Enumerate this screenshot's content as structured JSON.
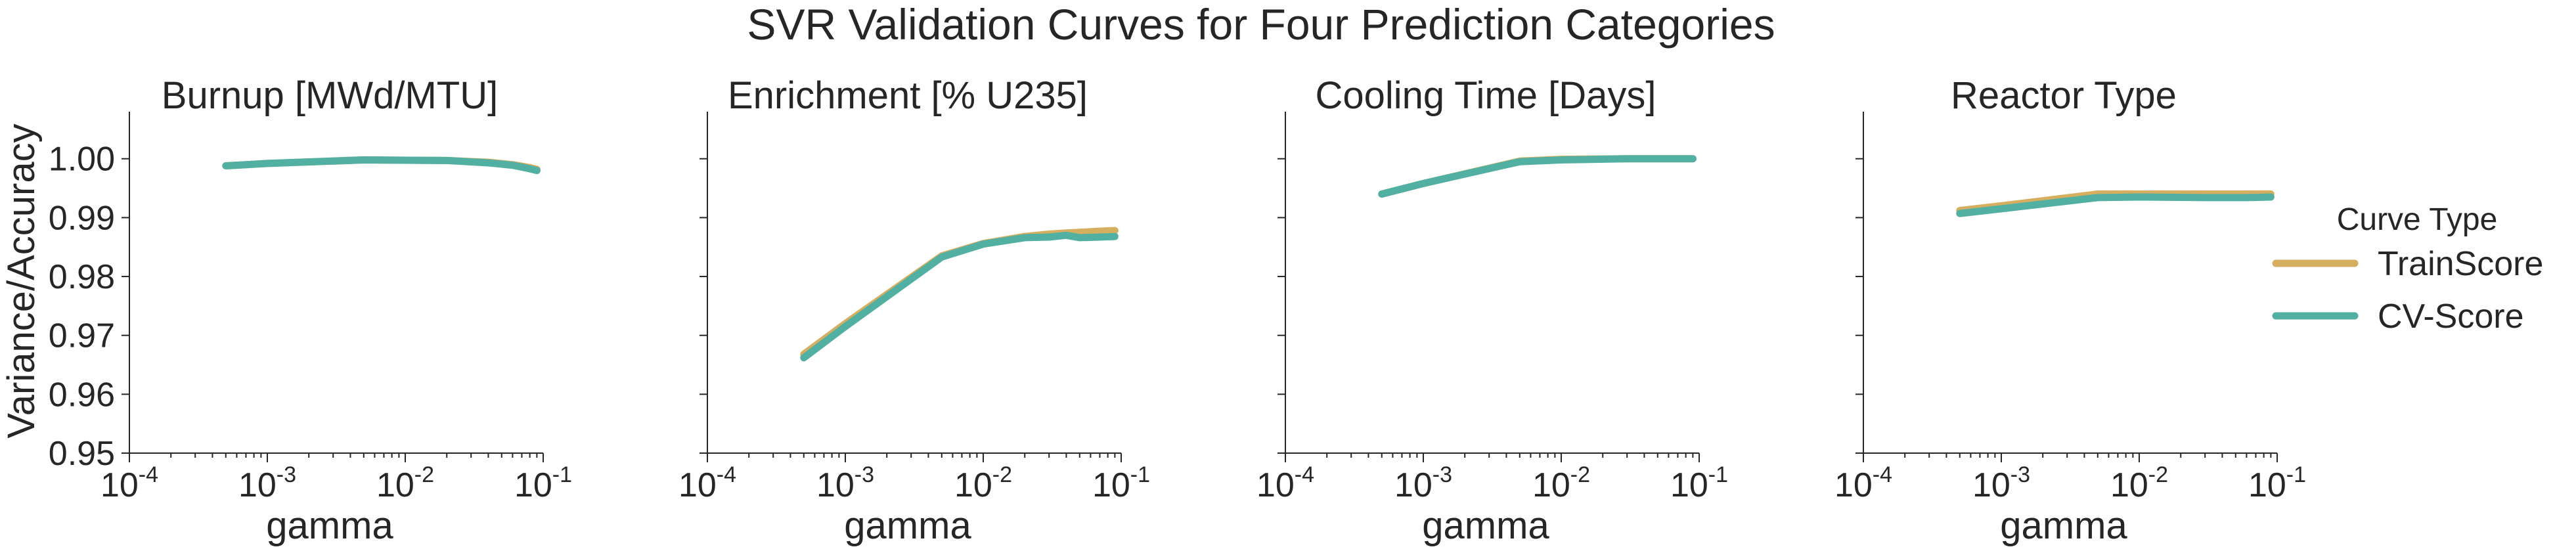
{
  "chart_data": {
    "type": "line",
    "title": "SVR Validation Curves for Four Prediction Categories",
    "ylabel": "Variance/Accuracy",
    "xlabel": "gamma",
    "xscale": "log",
    "xlim": [
      0.0001,
      0.1
    ],
    "ylim": [
      0.95,
      1.008
    ],
    "x_ticks": [
      {
        "value": 0.0001,
        "base": "10",
        "exp": "-4"
      },
      {
        "value": 0.001,
        "base": "10",
        "exp": "-3"
      },
      {
        "value": 0.01,
        "base": "10",
        "exp": "-2"
      },
      {
        "value": 0.1,
        "base": "10",
        "exp": "-1"
      }
    ],
    "y_ticks": [
      {
        "value": 0.95,
        "label": "0.95"
      },
      {
        "value": 0.96,
        "label": "0.96"
      },
      {
        "value": 0.97,
        "label": "0.97"
      },
      {
        "value": 0.98,
        "label": "0.98"
      },
      {
        "value": 0.99,
        "label": "0.99"
      },
      {
        "value": 1.0,
        "label": "1.00"
      }
    ],
    "grid": false,
    "legend": {
      "title": "Curve Type",
      "placement": "right",
      "entries": [
        {
          "name": "TrainScore",
          "color": "#d6ae60"
        },
        {
          "name": "CV-Score",
          "color": "#52b0a3"
        }
      ]
    },
    "panels": [
      {
        "title": "Burnup [MWd/MTU]",
        "series": [
          {
            "name": "TrainScore",
            "x": [
              0.0005,
              0.001,
              0.005,
              0.02,
              0.04,
              0.06,
              0.08,
              0.09
            ],
            "y": [
              0.9988,
              0.9992,
              0.9998,
              0.9997,
              0.9994,
              0.999,
              0.9985,
              0.9982
            ]
          },
          {
            "name": "CV-Score",
            "x": [
              0.0005,
              0.001,
              0.005,
              0.02,
              0.04,
              0.06,
              0.08,
              0.09
            ],
            "y": [
              0.9988,
              0.9992,
              0.9998,
              0.9997,
              0.9993,
              0.9989,
              0.9983,
              0.998
            ]
          }
        ]
      },
      {
        "title": "Enrichment [% U235]",
        "series": [
          {
            "name": "TrainScore",
            "x": [
              0.0005,
              0.001,
              0.005,
              0.01,
              0.02,
              0.03,
              0.04,
              0.05,
              0.07,
              0.09
            ],
            "y": [
              0.9668,
              0.972,
              0.9835,
              0.9856,
              0.9868,
              0.9872,
              0.9874,
              0.9875,
              0.9877,
              0.9878
            ]
          },
          {
            "name": "CV-Score",
            "x": [
              0.0005,
              0.001,
              0.005,
              0.01,
              0.02,
              0.03,
              0.04,
              0.05,
              0.07,
              0.09
            ],
            "y": [
              0.9662,
              0.9715,
              0.9833,
              0.9855,
              0.9866,
              0.9867,
              0.987,
              0.9866,
              0.9867,
              0.9868
            ]
          }
        ]
      },
      {
        "title": "Cooling Time [Days]",
        "series": [
          {
            "name": "TrainScore",
            "x": [
              0.0005,
              0.001,
              0.005,
              0.01,
              0.03,
              0.09
            ],
            "y": [
              0.994,
              0.9958,
              0.9996,
              0.9999,
              1.0,
              1.0
            ]
          },
          {
            "name": "CV-Score",
            "x": [
              0.0005,
              0.001,
              0.005,
              0.01,
              0.03,
              0.09
            ],
            "y": [
              0.994,
              0.9958,
              0.9995,
              0.9998,
              1.0,
              1.0
            ]
          }
        ]
      },
      {
        "title": "Reactor Type",
        "series": [
          {
            "name": "TrainScore",
            "x": [
              0.0005,
              0.001,
              0.005,
              0.01,
              0.03,
              0.09
            ],
            "y": [
              0.9912,
              0.992,
              0.994,
              0.994,
              0.994,
              0.994
            ]
          },
          {
            "name": "CV-Score",
            "x": [
              0.0005,
              0.001,
              0.005,
              0.01,
              0.03,
              0.06,
              0.09
            ],
            "y": [
              0.9907,
              0.9915,
              0.9934,
              0.9935,
              0.9934,
              0.9934,
              0.9935
            ]
          }
        ]
      }
    ]
  }
}
